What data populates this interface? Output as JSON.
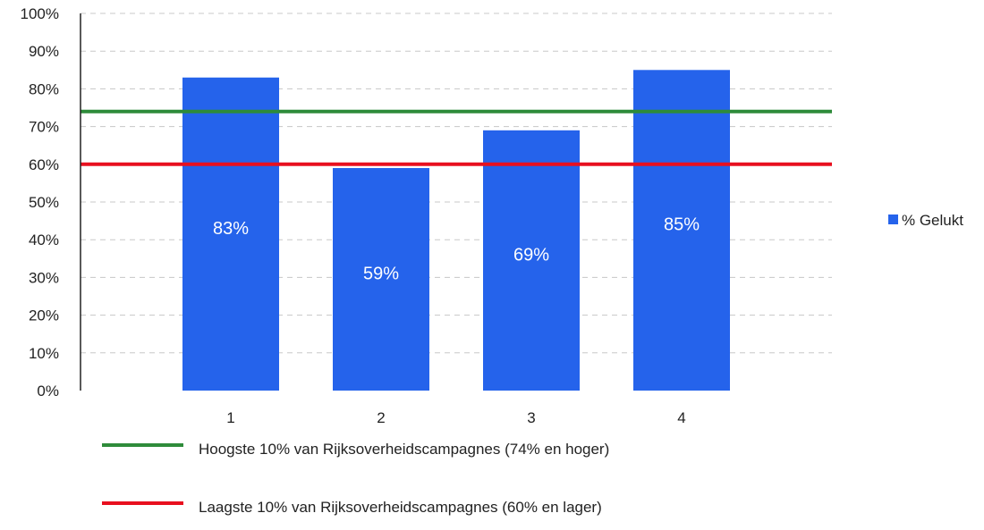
{
  "chart_data": {
    "type": "bar",
    "categories": [
      "1",
      "2",
      "3",
      "4"
    ],
    "series": [
      {
        "name": "% Gelukt",
        "values": [
          83,
          59,
          69,
          85
        ],
        "labels": [
          "83%",
          "59%",
          "69%",
          "85%"
        ],
        "color": "#2563eb"
      }
    ],
    "reference_lines": [
      {
        "value": 74,
        "color": "#2e8b3a",
        "label": "Hoogste 10% van Rijksoverheidscampagnes (74% en hoger)"
      },
      {
        "value": 60,
        "color": "#e8101f",
        "label": "Laagste 10% van Rijksoverheidscampagnes (60% en lager)"
      }
    ],
    "y_ticks": [
      "0%",
      "10%",
      "20%",
      "30%",
      "40%",
      "50%",
      "60%",
      "70%",
      "80%",
      "90%",
      "100%"
    ],
    "ylim": [
      0,
      100
    ],
    "grid": true,
    "legend_position": "right"
  }
}
